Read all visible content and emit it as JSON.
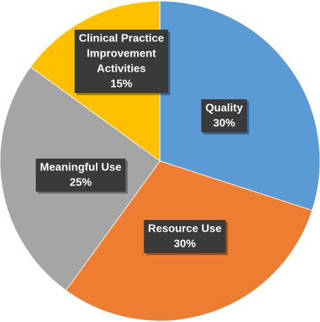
{
  "chart_data": {
    "type": "pie",
    "title": "",
    "start_angle_deg": 0,
    "direction": "clockwise",
    "legend": "none",
    "slices": [
      {
        "name": "Quality",
        "value": 30,
        "label_lines": [
          "Quality",
          "30%"
        ],
        "color": "#5b9bd5"
      },
      {
        "name": "Resource Use",
        "value": 30,
        "label_lines": [
          "Resource Use",
          "30%"
        ],
        "color": "#ed7d31"
      },
      {
        "name": "Meaningful Use",
        "value": 25,
        "label_lines": [
          "Meaningful Use",
          "25%"
        ],
        "color": "#a5a5a5"
      },
      {
        "name": "Clinical Practice Improvement Activities",
        "value": 15,
        "label_lines": [
          "Clinical Practice",
          "Improvement",
          "Activities",
          "15%"
        ],
        "color": "#ffc000"
      }
    ]
  }
}
